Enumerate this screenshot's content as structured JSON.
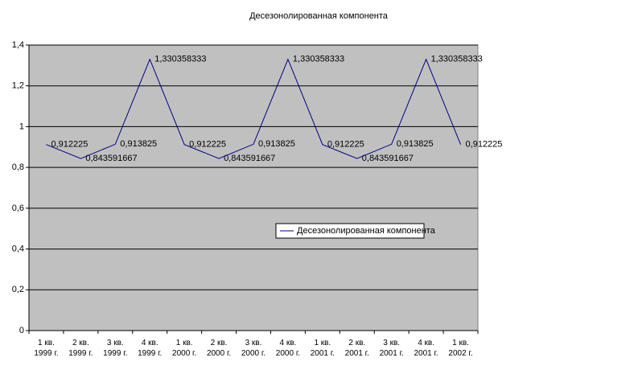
{
  "chart_data": {
    "type": "line",
    "title": "Десезонолированная компонента",
    "categories": [
      "1 кв.\n1999 г.",
      "2 кв.\n1999 г.",
      "3 кв.\n1999 г.",
      "4 кв.\n1999 г.",
      "1 кв.\n2000 г.",
      "2 кв.\n2000 г.",
      "3 кв.\n2000 г.",
      "4 кв.\n2000 г.",
      "1 кв.\n2001 г.",
      "2 кв.\n2001 г.",
      "3 кв.\n2001 г.",
      "4 кв.\n2001 г.",
      "1 кв.\n2002 г."
    ],
    "series": [
      {
        "name": "Десезонолированная компонента",
        "color": "#000080",
        "values": [
          0.912225,
          0.843591667,
          0.913825,
          1.330358333,
          0.912225,
          0.843591667,
          0.913825,
          1.330358333,
          0.912225,
          0.843591667,
          0.913825,
          1.330358333,
          0.912225
        ],
        "value_labels": [
          "0,912225",
          "0,843591667",
          "0,913825",
          "1,330358333",
          "0,912225",
          "0,843591667",
          "0,913825",
          "1,330358333",
          "0,912225",
          "0,843591667",
          "0,913825",
          "1,330358333",
          "0,912225"
        ]
      }
    ],
    "ylim": [
      0,
      1.4
    ],
    "yticks": [
      0,
      {
        "value": 0.2,
        "label": "0,2"
      },
      {
        "value": 0.4,
        "label": "0,4"
      },
      {
        "value": 0.6,
        "label": "0,6"
      },
      {
        "value": 0.8,
        "label": "0,8"
      },
      1,
      {
        "value": 1.2,
        "label": "1,2"
      },
      {
        "value": 1.4,
        "label": "1,4"
      }
    ],
    "grid": true,
    "plot_background": "#c0c0c0"
  }
}
